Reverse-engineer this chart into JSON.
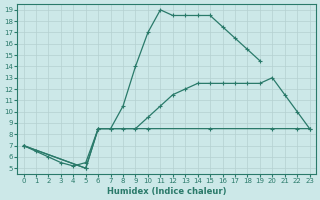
{
  "xlabel": "Humidex (Indice chaleur)",
  "bg_color": "#cce8e8",
  "grid_color": "#b5d0d0",
  "line_color": "#2a7a6a",
  "xlim": [
    -0.5,
    23.5
  ],
  "ylim": [
    4.5,
    19.5
  ],
  "xticks": [
    0,
    1,
    2,
    3,
    4,
    5,
    6,
    7,
    8,
    9,
    10,
    11,
    12,
    13,
    14,
    15,
    16,
    17,
    18,
    19,
    20,
    21,
    22,
    23
  ],
  "yticks": [
    5,
    6,
    7,
    8,
    9,
    10,
    11,
    12,
    13,
    14,
    15,
    16,
    17,
    18,
    19
  ],
  "line1": {
    "x": [
      0,
      1,
      2,
      3,
      4,
      5,
      6,
      7,
      8,
      9,
      10,
      11,
      12,
      13,
      14,
      15,
      16,
      17,
      18,
      19
    ],
    "y": [
      7,
      6.5,
      6,
      5.5,
      5.2,
      5.5,
      8.5,
      8.5,
      10.5,
      14,
      17,
      19,
      18.5,
      18.5,
      18.5,
      18.5,
      17.5,
      16.5,
      15.5,
      14.5
    ]
  },
  "line2": {
    "x": [
      0,
      5,
      6,
      7,
      8,
      9,
      10,
      11,
      12,
      13,
      14,
      15,
      16,
      17,
      18,
      19,
      20,
      21,
      22,
      23
    ],
    "y": [
      7,
      5,
      8.5,
      8.5,
      8.5,
      8.5,
      9.5,
      10.5,
      11.5,
      12,
      12.5,
      12.5,
      12.5,
      12.5,
      12.5,
      12.5,
      13,
      11.5,
      10,
      8.5
    ]
  },
  "line3": {
    "x": [
      0,
      5,
      6,
      10,
      15,
      20,
      22,
      23
    ],
    "y": [
      7,
      5,
      8.5,
      8.5,
      8.5,
      8.5,
      8.5,
      8.5
    ]
  }
}
